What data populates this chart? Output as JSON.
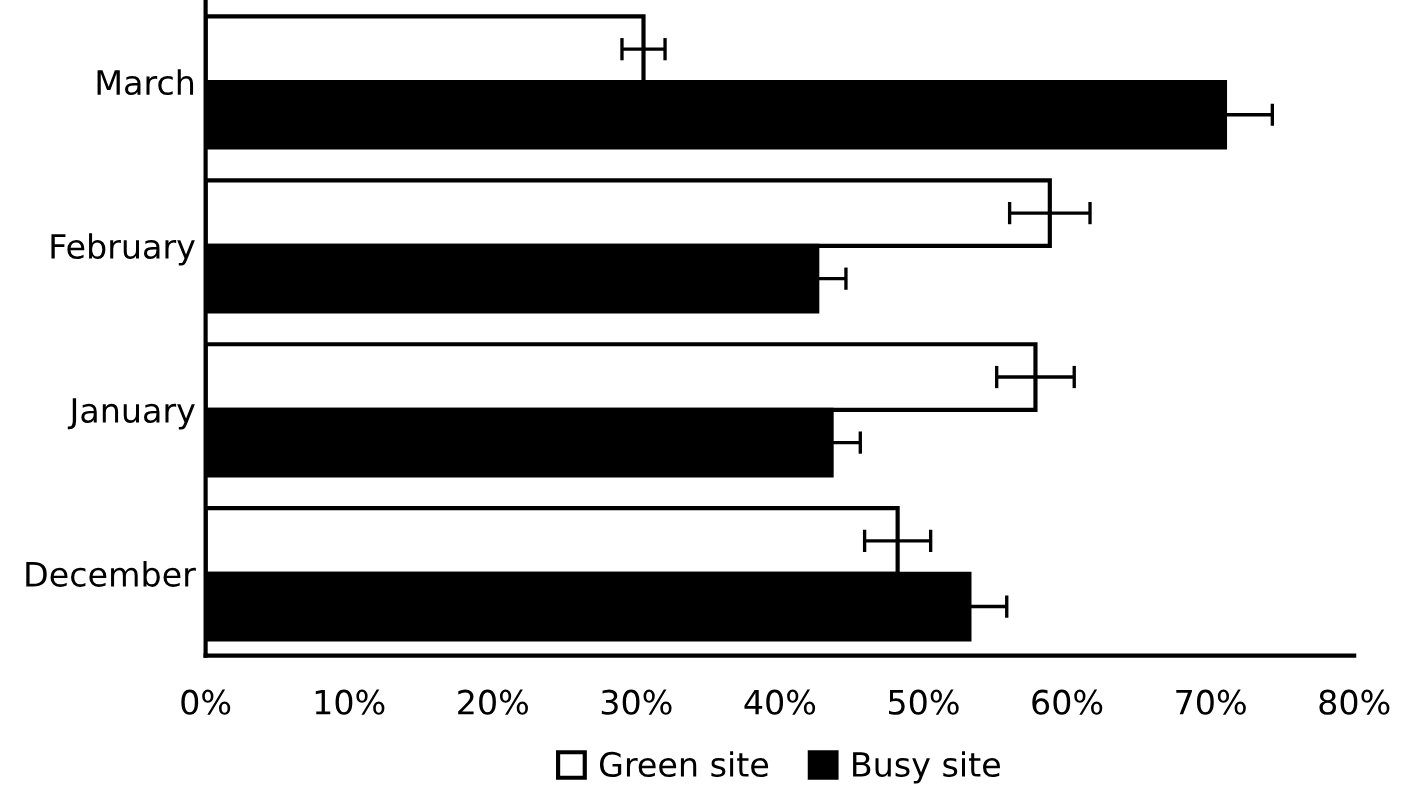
{
  "chart_data": {
    "type": "bar",
    "orientation": "horizontal",
    "categories": [
      "March",
      "February",
      "January",
      "December"
    ],
    "series": [
      {
        "name": "Green site",
        "color": "#ffffff",
        "values": [
          30.5,
          58.8,
          57.8,
          48.2
        ],
        "errors": [
          1.5,
          2.8,
          2.7,
          2.3
        ]
      },
      {
        "name": "Busy site",
        "color": "#000000",
        "values": [
          71,
          42.6,
          43.6,
          53.2
        ],
        "errors": [
          3.3,
          2,
          2,
          2.6
        ]
      }
    ],
    "xlim": [
      0,
      80
    ],
    "xticks": [
      {
        "value": 0,
        "label": "0%"
      },
      {
        "value": 10,
        "label": "10%"
      },
      {
        "value": 20,
        "label": "20%"
      },
      {
        "value": 30,
        "label": "30%"
      },
      {
        "value": 40,
        "label": "40%"
      },
      {
        "value": 50,
        "label": "50%"
      },
      {
        "value": 60,
        "label": "60%"
      },
      {
        "value": 70,
        "label": "70%"
      },
      {
        "value": 80,
        "label": "80%"
      }
    ],
    "grid": false,
    "legend": "bottom"
  }
}
